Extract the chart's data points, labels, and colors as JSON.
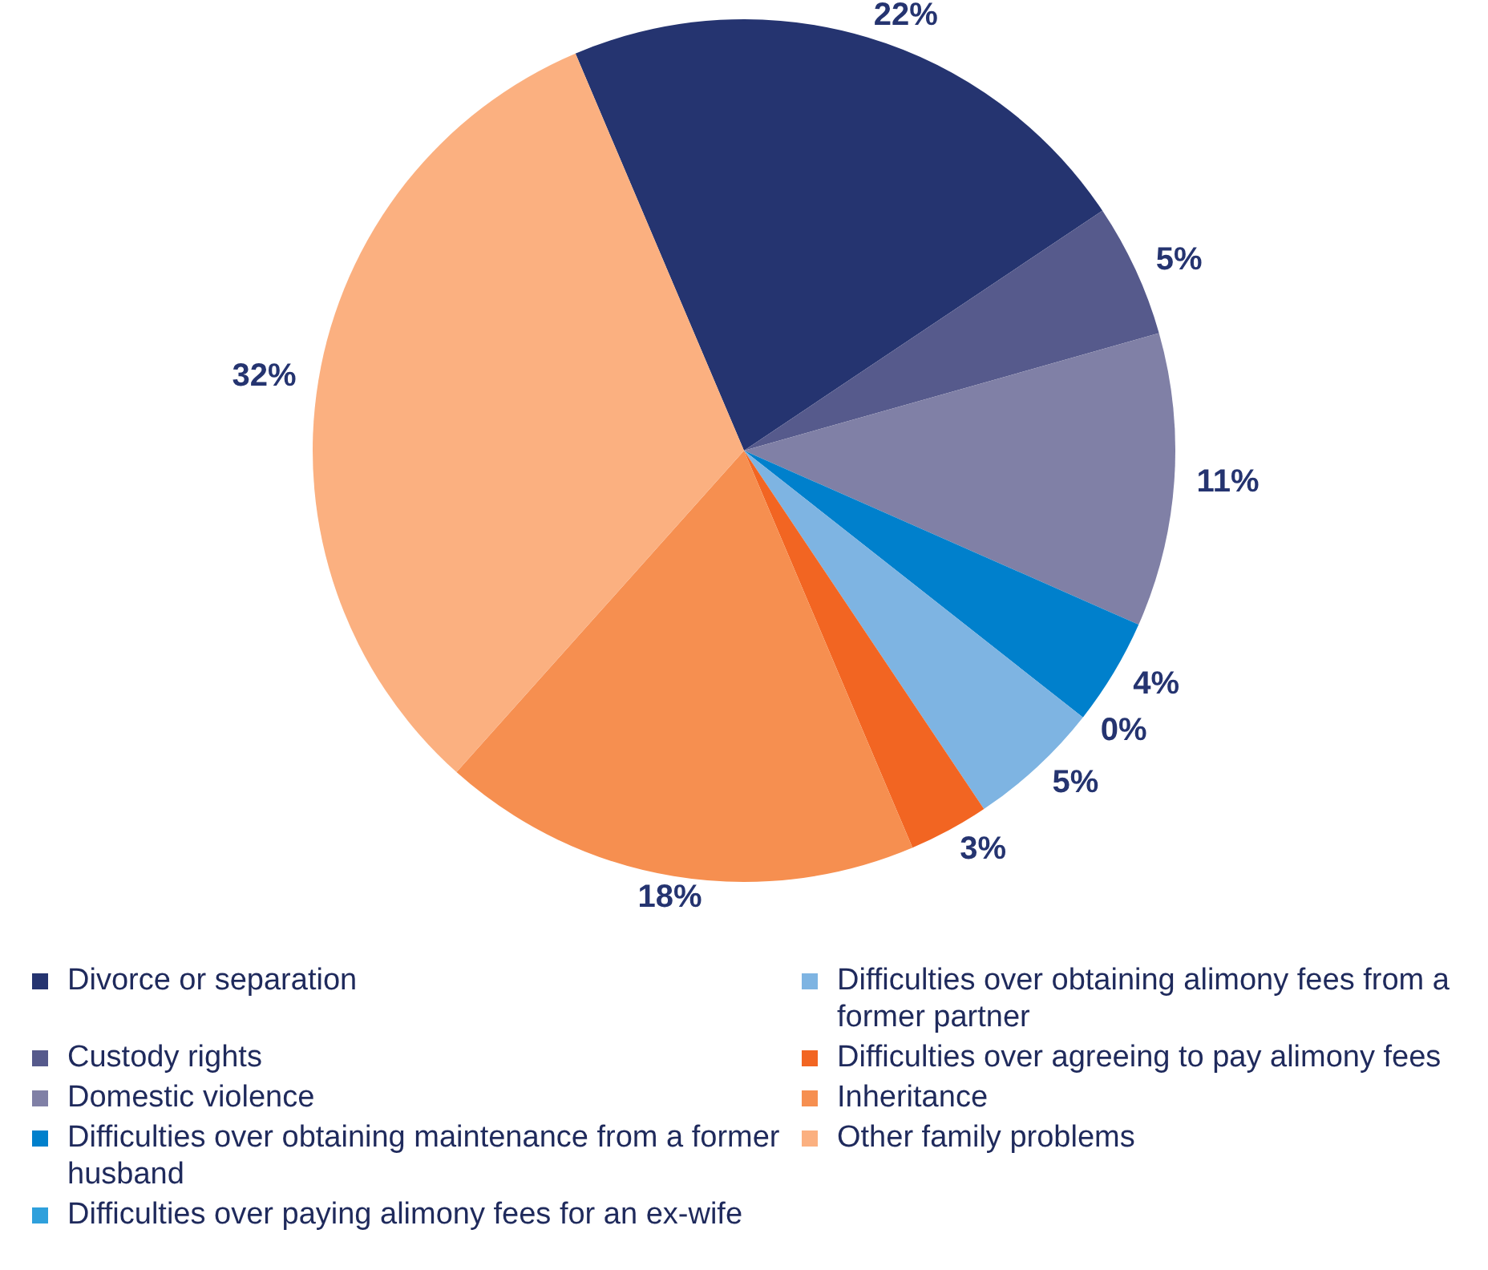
{
  "chart_data": {
    "type": "pie",
    "categories": [
      "Divorce or separation",
      "Custody rights",
      "Domestic violence",
      "Difficulties over obtaining maintenance from a former husband",
      "Difficulties over paying alimony fees for an ex-wife",
      "Difficulties over obtaining alimony fees from a former partner",
      "Difficulties over agreeing to pay alimony fees",
      "Inheritance",
      "Other family problems"
    ],
    "values": [
      22,
      5,
      11,
      4,
      0,
      5,
      3,
      18,
      32
    ],
    "colors": [
      "#253470",
      "#565a8c",
      "#8080a6",
      "#0080cc",
      "#2fa0dc",
      "#7eb4e2",
      "#f26522",
      "#f68f50",
      "#fbb080"
    ],
    "value_labels": [
      "22%",
      "5%",
      "11%",
      "4%",
      "0%",
      "5%",
      "3%",
      "18%",
      "32%"
    ],
    "legend": "bottom"
  }
}
